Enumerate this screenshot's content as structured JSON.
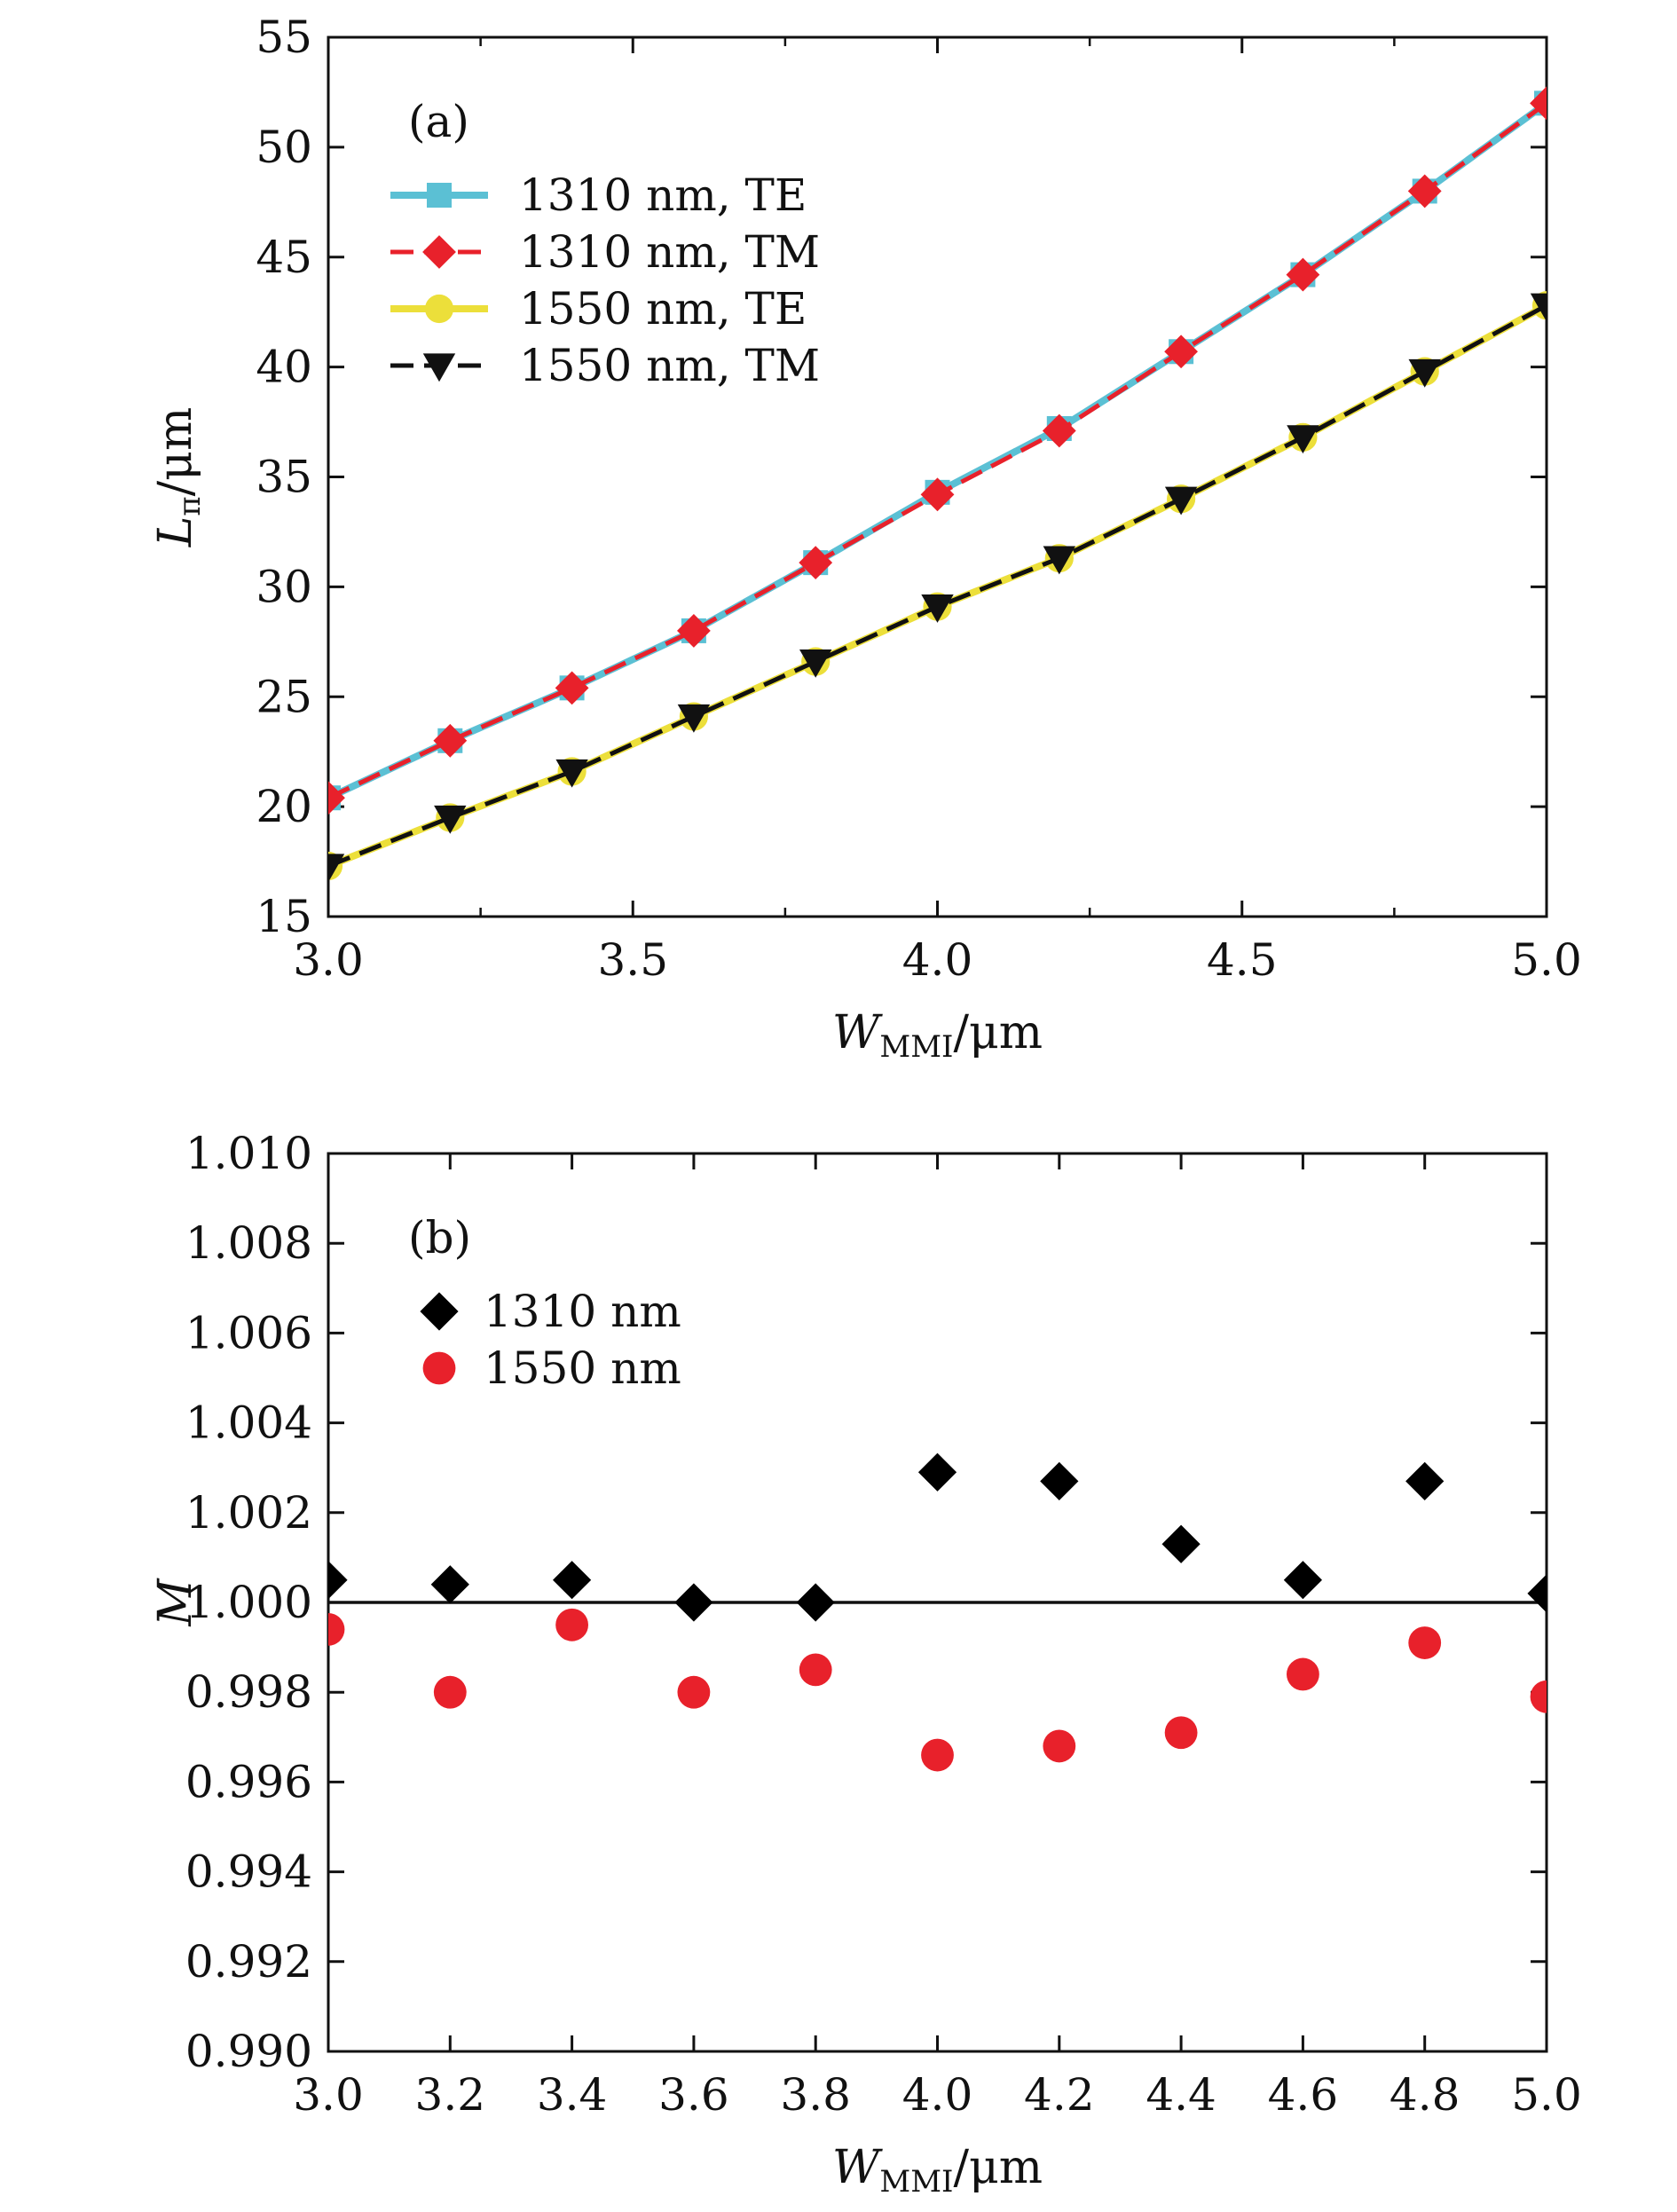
{
  "chart_data": [
    {
      "type": "line",
      "panel_label": "(a)",
      "xlabel": {
        "main": "W",
        "sub": "MMI",
        "unit": "/μm"
      },
      "ylabel": {
        "main": "L",
        "sub": "π",
        "unit": "/μm"
      },
      "xlim": [
        3.0,
        5.0
      ],
      "ylim": [
        15,
        55
      ],
      "xticks": [
        "3.0",
        "3.5",
        "4.0",
        "4.5",
        "5.0"
      ],
      "yticks": [
        "15",
        "20",
        "25",
        "30",
        "35",
        "40",
        "45",
        "50",
        "55"
      ],
      "x": [
        3.0,
        3.2,
        3.4,
        3.6,
        3.8,
        4.0,
        4.2,
        4.4,
        4.6,
        4.8,
        5.0
      ],
      "legend_position": "top-left",
      "series": [
        {
          "name": "1310 nm, TE",
          "color": "#5bc0d4",
          "marker": "square",
          "dash": "solid",
          "values": [
            20.4,
            23.0,
            25.4,
            28.0,
            31.1,
            34.3,
            37.2,
            40.7,
            44.2,
            48.0,
            52.0
          ]
        },
        {
          "name": "1310 nm, TM",
          "color": "#e8212b",
          "marker": "diamond",
          "dash": "dashed",
          "values": [
            20.4,
            23.0,
            25.4,
            28.0,
            31.1,
            34.2,
            37.1,
            40.7,
            44.2,
            48.0,
            52.0
          ]
        },
        {
          "name": "1550 nm, TE",
          "color": "#ecdf3a",
          "marker": "circle",
          "dash": "solid",
          "values": [
            17.3,
            19.5,
            21.6,
            24.1,
            26.6,
            29.1,
            31.3,
            34.0,
            36.8,
            39.8,
            42.8
          ]
        },
        {
          "name": "1550 nm, TM",
          "color": "#111111",
          "marker": "triangle-down",
          "dash": "dashed",
          "values": [
            17.3,
            19.5,
            21.6,
            24.1,
            26.6,
            29.1,
            31.3,
            34.0,
            36.8,
            39.8,
            42.8
          ]
        }
      ]
    },
    {
      "type": "scatter",
      "panel_label": "(b)",
      "xlabel": {
        "main": "W",
        "sub": "MMI",
        "unit": "/μm"
      },
      "ylabel": {
        "main": "M",
        "sub": "",
        "unit": ""
      },
      "xlim": [
        3.0,
        5.0
      ],
      "ylim": [
        0.99,
        1.01
      ],
      "xticks": [
        "3.0",
        "3.2",
        "3.4",
        "3.6",
        "3.8",
        "4.0",
        "4.2",
        "4.4",
        "4.6",
        "4.8",
        "5.0"
      ],
      "yticks": [
        "0.990",
        "0.992",
        "0.994",
        "0.996",
        "0.998",
        "1.000",
        "1.002",
        "1.004",
        "1.006",
        "1.008",
        "1.010"
      ],
      "x": [
        3.0,
        3.2,
        3.4,
        3.6,
        3.8,
        4.0,
        4.2,
        4.4,
        4.6,
        4.8,
        5.0
      ],
      "reference_line": 1.0,
      "legend_position": "top-left",
      "series": [
        {
          "name": "1310 nm",
          "color": "#000000",
          "marker": "diamond",
          "values": [
            1.0005,
            1.0004,
            1.0005,
            1.0,
            1.0,
            1.0029,
            1.0027,
            1.0013,
            1.0005,
            1.0027,
            1.0002
          ]
        },
        {
          "name": "1550 nm",
          "color": "#e8212b",
          "marker": "circle",
          "values": [
            0.9994,
            0.998,
            0.9995,
            0.998,
            0.9985,
            0.9966,
            0.9968,
            0.9971,
            0.9984,
            0.9991,
            0.9979
          ]
        }
      ]
    }
  ]
}
